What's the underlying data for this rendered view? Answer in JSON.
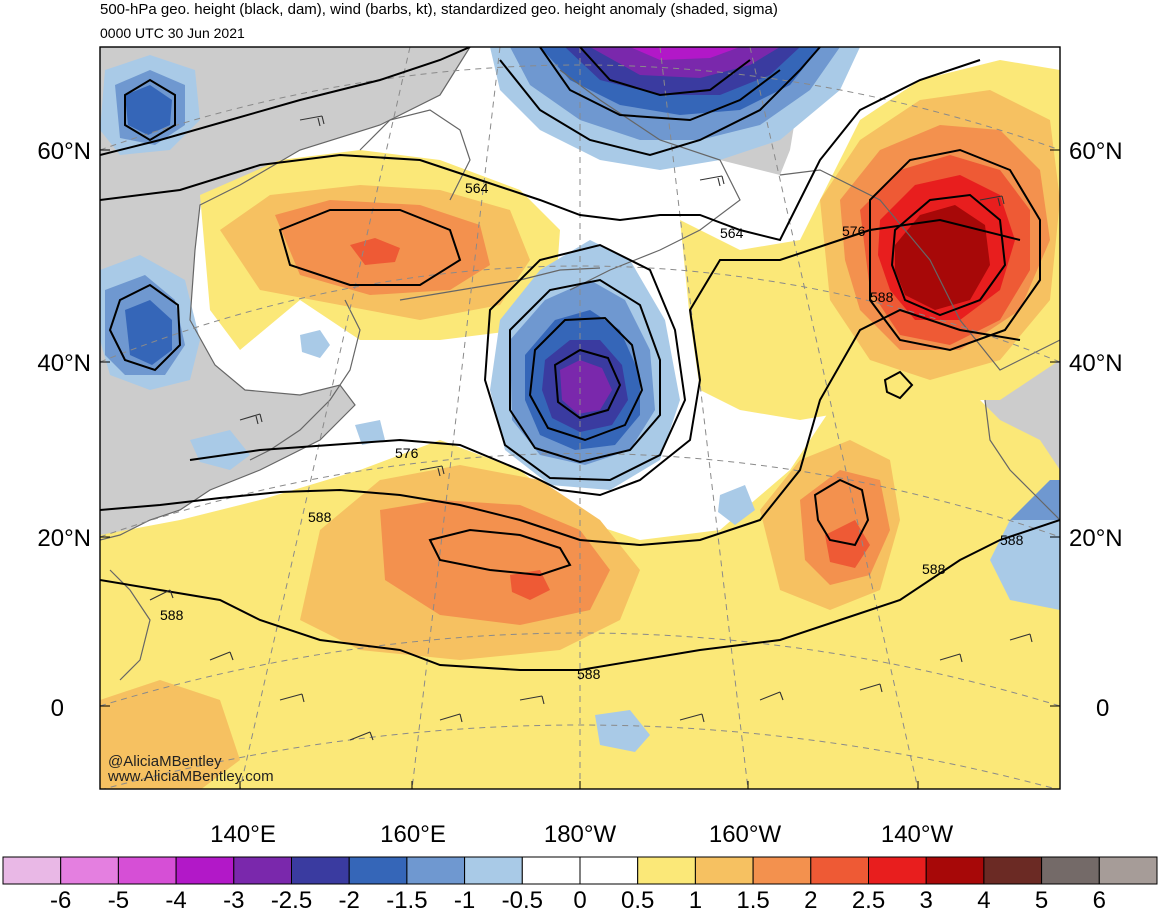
{
  "header": {
    "title": "500-hPa geo. height (black, dam), wind (barbs, kt), standardized geo. height anomaly (shaded, sigma)",
    "valid_time": "0000 UTC 30 Jun 2021"
  },
  "map": {
    "lat_labels": [
      {
        "text": "60°N",
        "lat": 60
      },
      {
        "text": "40°N",
        "lat": 40
      },
      {
        "text": "20°N",
        "lat": 20
      },
      {
        "text": "0",
        "lat": 0
      }
    ],
    "lon_labels": [
      {
        "text": "140°E"
      },
      {
        "text": "160°E"
      },
      {
        "text": "180°W"
      },
      {
        "text": "160°W"
      },
      {
        "text": "140°W"
      }
    ],
    "contour_labels": [
      "564",
      "564",
      "576",
      "576",
      "588",
      "588",
      "588",
      "588",
      "588",
      "588"
    ],
    "credit_handle": "@AliciaMBentley",
    "credit_site": "www.AliciaMBentley.com"
  },
  "colorbar": {
    "labels": [
      "-6",
      "-5",
      "-4",
      "-3",
      "-2.5",
      "-2",
      "-1.5",
      "-1",
      "-0.5",
      "0",
      "0.5",
      "1",
      "1.5",
      "2",
      "2.5",
      "3",
      "4",
      "5",
      "6"
    ],
    "colors": [
      "#e9b8e6",
      "#e47fe0",
      "#d64fd6",
      "#b218c8",
      "#7a28ac",
      "#3a3ba0",
      "#3566b8",
      "#6f98d0",
      "#a9cae7",
      "#ffffff",
      "#ffffff",
      "#fbe878",
      "#f6c161",
      "#f3914e",
      "#ee5a35",
      "#e81e1e",
      "#a70808",
      "#6b2a24",
      "#746a68",
      "#a69c98"
    ]
  },
  "palette": {
    "land": "#cccccc",
    "coast": "#666666",
    "contour": "#000000"
  }
}
